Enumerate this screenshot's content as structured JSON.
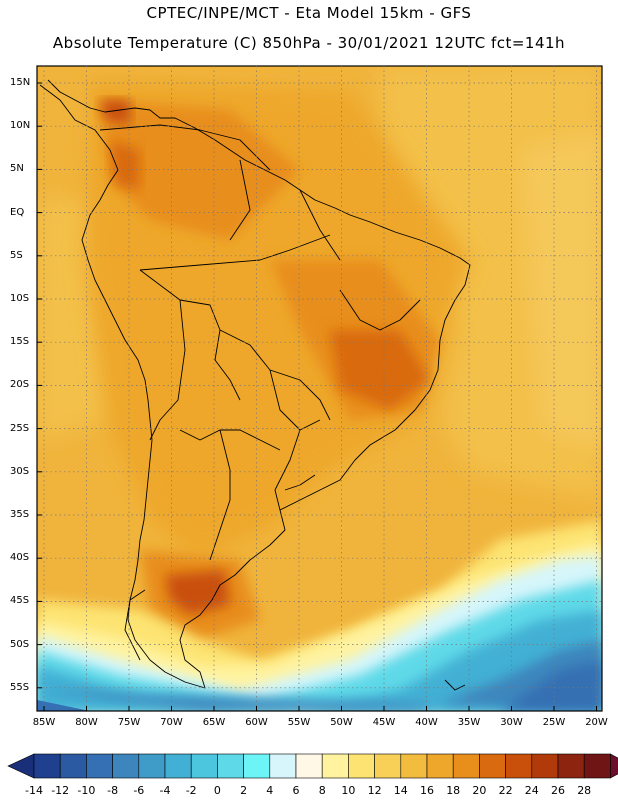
{
  "header": {
    "line1": "CPTEC/INPE/MCT -   Eta Model 15km - GFS",
    "line2": "Absolute Temperature (C) 850hPa - 30/01/2021 12UTC fct=141h"
  },
  "map": {
    "latitude_labels": [
      "15N",
      "10N",
      "5N",
      "EQ",
      "5S",
      "10S",
      "15S",
      "20S",
      "25S",
      "30S",
      "35S",
      "40S",
      "45S",
      "50S",
      "55S"
    ],
    "longitude_labels": [
      "85W",
      "80W",
      "75W",
      "70W",
      "65W",
      "60W",
      "55W",
      "50W",
      "45W",
      "40W",
      "35W",
      "30W",
      "25W",
      "20W"
    ],
    "grid": "dotted"
  },
  "colorbar": {
    "labels": [
      "-14",
      "-12",
      "-10",
      "-8",
      "-6",
      "-4",
      "-2",
      "0",
      "2",
      "4",
      "6",
      "8",
      "10",
      "12",
      "14",
      "16",
      "18",
      "20",
      "22",
      "24",
      "26",
      "28"
    ],
    "colors": [
      "#1f3f8f",
      "#2b5aa3",
      "#3470b3",
      "#3c86bd",
      "#3f9bc8",
      "#42b0d4",
      "#4cc5df",
      "#5ed9e8",
      "#6cf4f6",
      "#d6f6fb",
      "#fff8e6",
      "#fff3a0",
      "#fde472",
      "#f8d057",
      "#f2bc3e",
      "#eea72a",
      "#e88e1a",
      "#d96a0f",
      "#c9500a",
      "#b03a0a",
      "#8c2410",
      "#701515"
    ]
  }
}
